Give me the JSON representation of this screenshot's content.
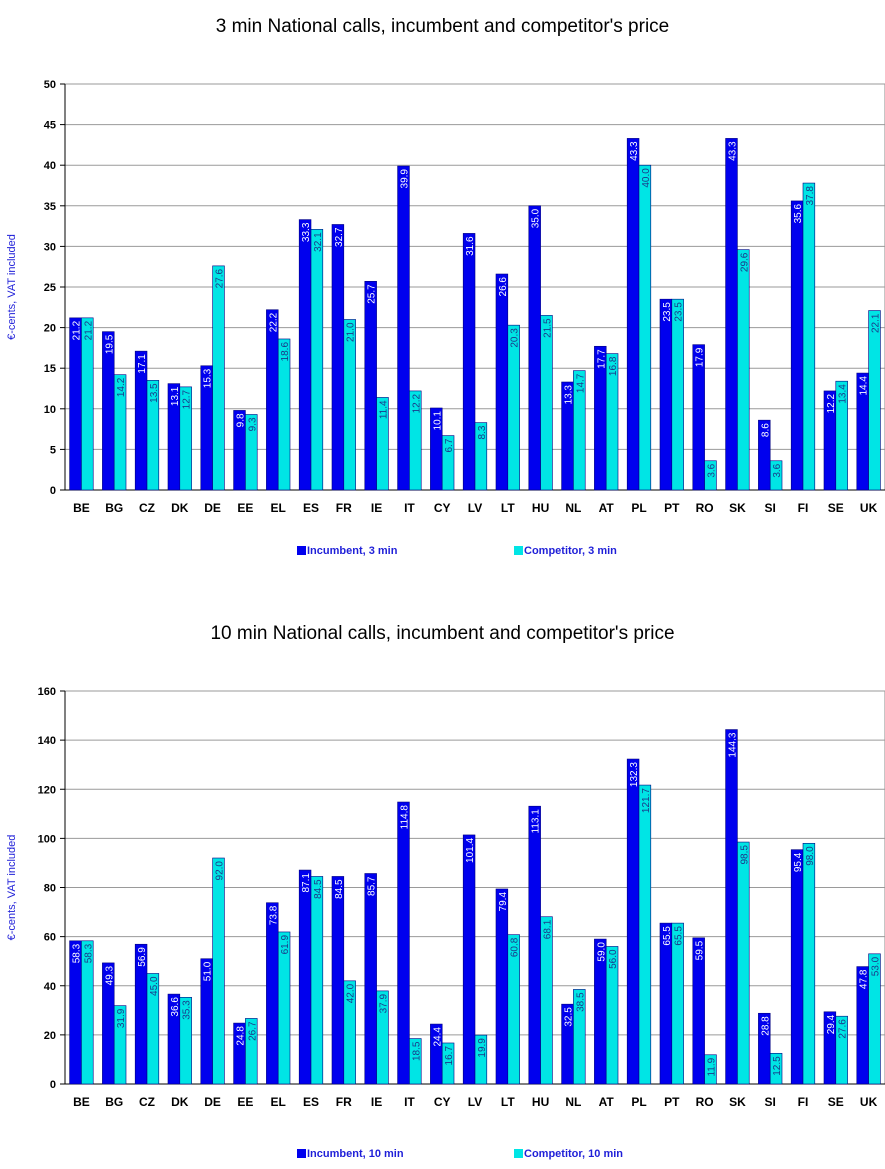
{
  "chart_data": [
    {
      "type": "bar",
      "title": "3 min National calls, incumbent and competitor's price",
      "ylabel": "€-cents, VAT included",
      "xlabel": "",
      "ylim": [
        0,
        50
      ],
      "yticks": [
        0,
        5,
        10,
        15,
        20,
        25,
        30,
        35,
        40,
        45,
        50
      ],
      "grid": true,
      "legend_position": "bottom",
      "categories": [
        "BE",
        "BG",
        "CZ",
        "DK",
        "DE",
        "EE",
        "EL",
        "ES",
        "FR",
        "IE",
        "IT",
        "CY",
        "LV",
        "LT",
        "HU",
        "NL",
        "AT",
        "PL",
        "PT",
        "RO",
        "SK",
        "SI",
        "FI",
        "SE",
        "UK"
      ],
      "series": [
        {
          "name": "Incumbent, 3 min",
          "color": "#0000ee",
          "values": [
            21.2,
            19.5,
            17.1,
            13.1,
            15.3,
            9.8,
            22.2,
            33.3,
            32.7,
            25.7,
            39.9,
            10.1,
            31.6,
            26.6,
            35.0,
            13.3,
            17.7,
            43.3,
            23.5,
            17.9,
            43.3,
            8.6,
            35.6,
            12.2,
            14.4
          ],
          "labels": [
            "21.2",
            "19.5",
            "17.1",
            "13.1",
            "15.3",
            "9.8",
            "22.2",
            "33.3",
            "32.7",
            "25.7",
            "39.9",
            "10.1",
            "31.6",
            "26.6",
            "35.0",
            "13.3",
            "17.7",
            "43.3",
            "23.5",
            "17.9",
            "43.3",
            "8.6",
            "35.6",
            "12.2",
            "14.4"
          ]
        },
        {
          "name": "Competitor, 3 min",
          "color": "#00e5e5",
          "values": [
            21.2,
            14.2,
            13.5,
            12.7,
            27.6,
            9.3,
            18.6,
            32.1,
            21.0,
            11.4,
            12.2,
            6.7,
            8.3,
            20.3,
            21.5,
            14.7,
            16.8,
            40.0,
            23.5,
            3.6,
            29.6,
            3.6,
            37.8,
            13.4,
            22.1
          ],
          "labels": [
            "21.2",
            "14.2",
            "13.5",
            "12.7",
            "27.6",
            "9.3",
            "18.6",
            "32.1",
            "21.0",
            "11.4",
            "12.2",
            "6.7",
            "8.3",
            "20.3",
            "21.5",
            "14.7",
            "16.8",
            "40.0",
            "23.5",
            "3.6",
            "29.6",
            "3.6",
            "37.8",
            "13.4",
            "22.1"
          ]
        }
      ]
    },
    {
      "type": "bar",
      "title": "10 min National calls, incumbent and competitor's price",
      "ylabel": "€-cents, VAT included",
      "xlabel": "",
      "ylim": [
        0,
        160
      ],
      "yticks": [
        0,
        20,
        40,
        60,
        80,
        100,
        120,
        140,
        160
      ],
      "grid": true,
      "legend_position": "bottom",
      "categories": [
        "BE",
        "BG",
        "CZ",
        "DK",
        "DE",
        "EE",
        "EL",
        "ES",
        "FR",
        "IE",
        "IT",
        "CY",
        "LV",
        "LT",
        "HU",
        "NL",
        "AT",
        "PL",
        "PT",
        "RO",
        "SK",
        "SI",
        "FI",
        "SE",
        "UK"
      ],
      "series": [
        {
          "name": "Incumbent, 10 min",
          "color": "#0000ee",
          "values": [
            58.3,
            49.3,
            56.9,
            36.6,
            51.0,
            24.8,
            73.8,
            87.1,
            84.5,
            85.7,
            114.8,
            24.4,
            101.4,
            79.4,
            113.1,
            32.5,
            59.0,
            132.3,
            65.5,
            59.5,
            144.3,
            28.8,
            95.4,
            29.4,
            47.8
          ],
          "labels": [
            "58.3",
            "49.3",
            "56.9",
            "36.6",
            "51.0",
            "24.8",
            "73.8",
            "87.1",
            "84.5",
            "85.7",
            "114.8",
            "24.4",
            "101.4",
            "79.4",
            "113.1",
            "32.5",
            "59.0",
            "132.3",
            "65.5",
            "59.5",
            "144.3",
            "28.8",
            "95.4",
            "29.4",
            "47.8"
          ]
        },
        {
          "name": "Competitor, 10 min",
          "color": "#00e5e5",
          "values": [
            58.3,
            31.9,
            45.0,
            35.3,
            92.0,
            26.7,
            61.9,
            84.5,
            42.0,
            37.9,
            18.5,
            16.7,
            19.9,
            60.8,
            68.1,
            38.5,
            56.0,
            121.7,
            65.5,
            11.9,
            98.5,
            12.5,
            98.0,
            27.6,
            53.0
          ],
          "labels": [
            "58.3",
            "31.9",
            "45.0",
            "35.3",
            "92.0",
            "26.7",
            "61.9",
            "84.5",
            "42.0",
            "37.9",
            "18.5",
            "16.7",
            "19.9",
            "60.8",
            "68.1",
            "38.5",
            "56.0",
            "121.7",
            "65.5",
            "11.9",
            "98.5",
            "12.5",
            "98.0",
            "27.6",
            "53.0"
          ]
        }
      ]
    }
  ]
}
